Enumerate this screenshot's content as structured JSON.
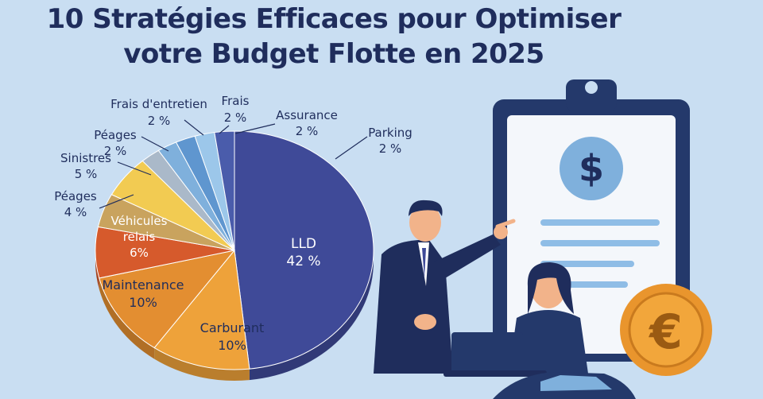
{
  "title": {
    "line1": "10 Stratégies Efficaces pour Optimiser",
    "line2": "votre Budget Flotte en 2025"
  },
  "colors": {
    "background": "#c9def2",
    "title": "#1f2d5c"
  },
  "chart_data": {
    "type": "pie",
    "title": "10 Stratégies Efficaces pour Optimiser votre Budget Flotte en 2025",
    "slices": [
      {
        "label": "LLD",
        "value_label": "42 %",
        "value": 42,
        "color": "#3f4a98"
      },
      {
        "label": "Carburant",
        "value_label": "10%",
        "value": 10,
        "color": "#eea23a"
      },
      {
        "label": "Maintenance",
        "value_label": "10%",
        "value": 10,
        "color": "#e38e31"
      },
      {
        "label": "Véhicules relais",
        "value_label": "6%",
        "value": 6,
        "color": "#d65a2c"
      },
      {
        "label": "Péages",
        "value_label": "4 %",
        "value": 4,
        "color": "#c9a35e"
      },
      {
        "label": "Sinistres",
        "value_label": "5 %",
        "value": 5,
        "color": "#f2cb52"
      },
      {
        "label": "Péages",
        "value_label": "2 %",
        "value": 2,
        "color": "#aab9c9"
      },
      {
        "label": "Frais d'entretien",
        "value_label": "2 %",
        "value": 2,
        "color": "#7fb0dc"
      },
      {
        "label": "Frais",
        "value_label": "2 %",
        "value": 2,
        "color": "#5f96cf"
      },
      {
        "label": "Assurance",
        "value_label": "2 %",
        "value": 2,
        "color": "#9cc7ea"
      },
      {
        "label": "Parking",
        "value_label": "2 %",
        "value": 2,
        "color": "#4a5cab"
      }
    ]
  }
}
